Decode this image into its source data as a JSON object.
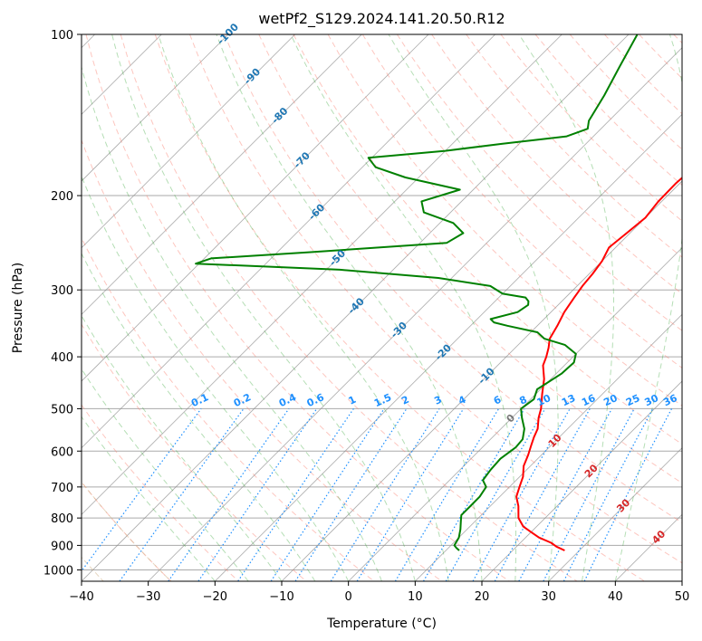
{
  "chart_data": {
    "type": "line",
    "title": "wetPf2_S129.2024.141.20.50.R12",
    "xlabel": "Temperature (°C)",
    "ylabel": "Pressure (hPa)",
    "xlim": [
      -40,
      50
    ],
    "ylim": [
      1050,
      100
    ],
    "y_scale": "log",
    "grid": true,
    "x_ticks": [
      -40,
      -30,
      -20,
      -10,
      0,
      10,
      20,
      30,
      40,
      50
    ],
    "y_ticks": [
      100,
      200,
      300,
      400,
      500,
      600,
      700,
      800,
      900,
      1000
    ],
    "colors": {
      "temperature": "#ff0000",
      "dewpoint": "#008000",
      "grid": "#aaaaaa",
      "skew_isotherm": "#888888",
      "dry_adiabat": "#fa8072",
      "moist_adiabat": "#2ca02c",
      "mixing_ratio": "#1e90ff",
      "dry_adiabat_dense": "#d2b48c",
      "label_blue": "#1f77b4",
      "label_red": "#d62728",
      "label_gray": "#777777"
    },
    "series": [
      {
        "key": "temperature",
        "points": [
          [
            -8.0,
            150
          ],
          [
            -9.0,
            160
          ],
          [
            -10.2,
            175
          ],
          [
            -10.6,
            190
          ],
          [
            -10.5,
            205
          ],
          [
            -10.0,
            220
          ],
          [
            -10.5,
            235
          ],
          [
            -11.0,
            250
          ],
          [
            -10.0,
            265
          ],
          [
            -9.5,
            280
          ],
          [
            -9.2,
            295
          ],
          [
            -8.7,
            310
          ],
          [
            -8.0,
            330
          ],
          [
            -7.0,
            350
          ],
          [
            -6.2,
            370
          ],
          [
            -5.0,
            385
          ],
          [
            -4.0,
            400
          ],
          [
            -3.2,
            415
          ],
          [
            -1.0,
            440
          ],
          [
            1.0,
            470
          ],
          [
            3.0,
            500
          ],
          [
            4.0,
            520
          ],
          [
            5.5,
            545
          ],
          [
            6.2,
            565
          ],
          [
            7.0,
            585
          ],
          [
            8.0,
            610
          ],
          [
            9.0,
            640
          ],
          [
            10.5,
            670
          ],
          [
            11.5,
            700
          ],
          [
            12.5,
            730
          ],
          [
            14.2,
            760
          ],
          [
            16.0,
            800
          ],
          [
            18.0,
            830
          ],
          [
            20.0,
            850
          ],
          [
            22.0,
            870
          ],
          [
            24.6,
            890
          ],
          [
            26.0,
            905
          ],
          [
            27.8,
            920
          ]
        ]
      },
      {
        "key": "dewpoint",
        "points": [
          [
            -38.7,
            100
          ],
          [
            -36.5,
            115
          ],
          [
            -34.5,
            130
          ],
          [
            -33.0,
            145
          ],
          [
            -32.0,
            150
          ],
          [
            -34.0,
            155
          ],
          [
            -42.5,
            160
          ],
          [
            -50.0,
            165
          ],
          [
            -60.5,
            170
          ],
          [
            -58.0,
            177
          ],
          [
            -52.0,
            185
          ],
          [
            -42.0,
            195
          ],
          [
            -46.0,
            205
          ],
          [
            -44.0,
            215
          ],
          [
            -38.0,
            225
          ],
          [
            -35.0,
            235
          ],
          [
            -36.0,
            245
          ],
          [
            -55.0,
            255
          ],
          [
            -69.0,
            262
          ],
          [
            -70.5,
            268
          ],
          [
            -48.0,
            275
          ],
          [
            -32.0,
            285
          ],
          [
            -23.0,
            295
          ],
          [
            -20.0,
            305
          ],
          [
            -16.0,
            310
          ],
          [
            -15.0,
            315
          ],
          [
            -14.5,
            320
          ],
          [
            -15.0,
            330
          ],
          [
            -18.0,
            340
          ],
          [
            -17.0,
            345
          ],
          [
            -14.5,
            350
          ],
          [
            -9.0,
            360
          ],
          [
            -7.0,
            370
          ],
          [
            -3.0,
            380
          ],
          [
            0.0,
            395
          ],
          [
            1.0,
            410
          ],
          [
            0.8,
            430
          ],
          [
            -0.5,
            460
          ],
          [
            0.5,
            480
          ],
          [
            0.0,
            500
          ],
          [
            1.5,
            520
          ],
          [
            3.5,
            545
          ],
          [
            4.8,
            570
          ],
          [
            5.0,
            590
          ],
          [
            4.4,
            620
          ],
          [
            4.6,
            650
          ],
          [
            5.0,
            680
          ],
          [
            6.5,
            700
          ],
          [
            7.0,
            730
          ],
          [
            7.0,
            760
          ],
          [
            7.0,
            790
          ],
          [
            7.8,
            810
          ],
          [
            9.0,
            840
          ],
          [
            10.0,
            870
          ],
          [
            10.5,
            900
          ],
          [
            11.2,
            910
          ],
          [
            12.0,
            920
          ]
        ]
      }
    ],
    "mixing_ratio_labels": [
      "0.1",
      "0.2",
      "0.4",
      "0.6",
      "1",
      "1.5",
      "2",
      "3",
      "4",
      "6",
      "8",
      "10",
      "13",
      "16",
      "20",
      "25",
      "30",
      "36"
    ],
    "isotherm_labels": {
      "blue": [
        "-100",
        "-90",
        "-80",
        "-70",
        "-60",
        "-50",
        "-40",
        "-30",
        "-20",
        "-10"
      ],
      "gray": [
        "0"
      ],
      "red": [
        "10",
        "20",
        "30",
        "40"
      ]
    }
  }
}
